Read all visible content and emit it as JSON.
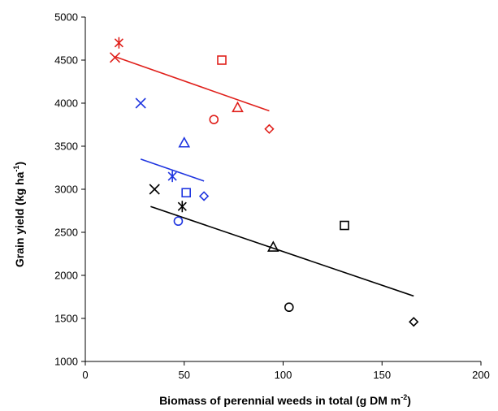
{
  "chart_data": {
    "type": "scatter",
    "title": "",
    "xlabel": "Biomass of perennial weeds in total (g DM m",
    "xlabel_sup": "-2",
    "xlabel_end": ")",
    "ylabel": "Grain yield (kg ha",
    "ylabel_sup": "-1",
    "ylabel_end": ")",
    "xlim": [
      0,
      200
    ],
    "ylim": [
      1000,
      5000
    ],
    "xticks": [
      0,
      50,
      100,
      150,
      200
    ],
    "yticks": [
      1000,
      1500,
      2000,
      2500,
      3000,
      3500,
      4000,
      4500,
      5000
    ],
    "grid": false,
    "legend": "none",
    "series": [
      {
        "color": "#e0201b",
        "points": [
          {
            "x": 17,
            "y": 4700,
            "marker": "asterisk"
          },
          {
            "x": 15,
            "y": 4530,
            "marker": "x"
          },
          {
            "x": 69,
            "y": 4500,
            "marker": "square"
          },
          {
            "x": 77,
            "y": 3950,
            "marker": "triangle"
          },
          {
            "x": 65,
            "y": 3810,
            "marker": "circle"
          },
          {
            "x": 93,
            "y": 3700,
            "marker": "diamond"
          }
        ],
        "trend": [
          {
            "x": 15,
            "y": 4540
          },
          {
            "x": 93,
            "y": 3910
          }
        ]
      },
      {
        "color": "#1f35e0",
        "points": [
          {
            "x": 28,
            "y": 4000,
            "marker": "x"
          },
          {
            "x": 50,
            "y": 3540,
            "marker": "triangle"
          },
          {
            "x": 44,
            "y": 3150,
            "marker": "asterisk"
          },
          {
            "x": 51,
            "y": 2960,
            "marker": "square"
          },
          {
            "x": 60,
            "y": 2920,
            "marker": "diamond"
          },
          {
            "x": 47,
            "y": 2630,
            "marker": "circle"
          }
        ],
        "trend": [
          {
            "x": 28,
            "y": 3350
          },
          {
            "x": 60,
            "y": 3095
          }
        ]
      },
      {
        "color": "#000000",
        "points": [
          {
            "x": 35,
            "y": 3000,
            "marker": "x"
          },
          {
            "x": 49,
            "y": 2800,
            "marker": "asterisk"
          },
          {
            "x": 131,
            "y": 2580,
            "marker": "square"
          },
          {
            "x": 95,
            "y": 2330,
            "marker": "triangle"
          },
          {
            "x": 103,
            "y": 1630,
            "marker": "circle"
          },
          {
            "x": 166,
            "y": 1460,
            "marker": "diamond"
          }
        ],
        "trend": [
          {
            "x": 33,
            "y": 2800
          },
          {
            "x": 166,
            "y": 1760
          }
        ]
      }
    ]
  }
}
